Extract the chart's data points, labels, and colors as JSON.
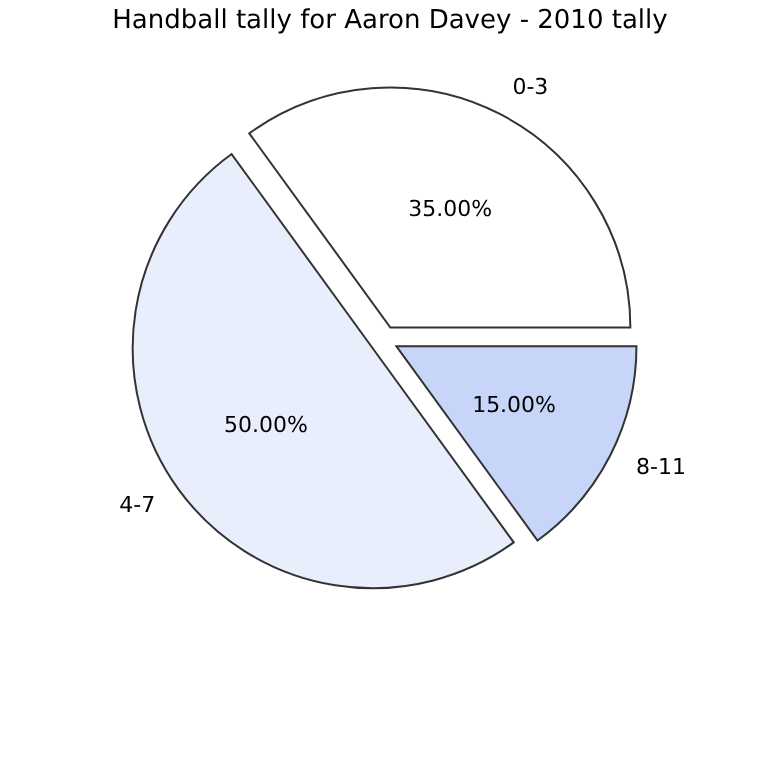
{
  "chart_data": {
    "type": "pie",
    "title": "Handball tally for Aaron Davey - 2010 tally",
    "categories": [
      "0-3",
      "4-7",
      "8-11"
    ],
    "values": [
      35,
      50,
      15
    ],
    "colors": [
      "#ffffff",
      "#e8eefc",
      "#c6d5f8"
    ],
    "value_labels": [
      "35.00%",
      "50.00%",
      "15.00%"
    ]
  }
}
